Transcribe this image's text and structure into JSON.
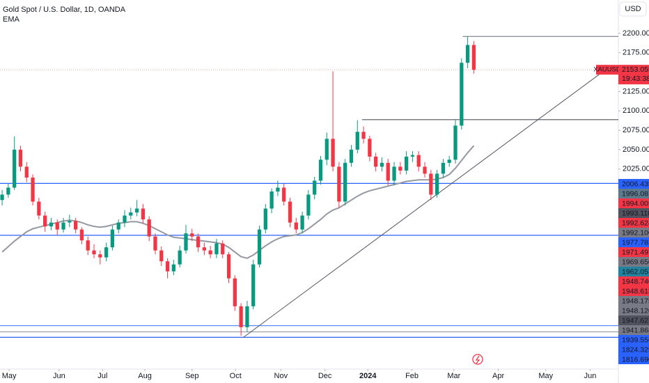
{
  "chart_data": {
    "type": "candlestick",
    "title": "Gold Spot / U.S. Dollar, 1D, OANDA",
    "indicator": "EMA",
    "currency": "USD",
    "up_color": "#089981",
    "down_color": "#f23645",
    "ema_color": "#9598a1",
    "candles": [
      [
        1985,
        1998,
        1978,
        1992
      ],
      [
        1992,
        2006,
        1988,
        2001
      ],
      [
        2001,
        2067,
        1998,
        2050
      ],
      [
        2050,
        2055,
        2022,
        2028
      ],
      [
        2028,
        2034,
        2008,
        2014
      ],
      [
        2014,
        2018,
        1978,
        1983
      ],
      [
        1983,
        1988,
        1960,
        1965
      ],
      [
        1965,
        1970,
        1944,
        1951
      ],
      [
        1951,
        1962,
        1946,
        1956
      ],
      [
        1956,
        1960,
        1940,
        1947
      ],
      [
        1947,
        1962,
        1943,
        1956
      ],
      [
        1956,
        1966,
        1950,
        1958
      ],
      [
        1958,
        1962,
        1942,
        1947
      ],
      [
        1947,
        1950,
        1928,
        1933
      ],
      [
        1933,
        1938,
        1914,
        1920
      ],
      [
        1920,
        1928,
        1910,
        1915
      ],
      [
        1915,
        1920,
        1902,
        1911
      ],
      [
        1911,
        1930,
        1906,
        1924
      ],
      [
        1924,
        1952,
        1920,
        1947
      ],
      [
        1947,
        1960,
        1942,
        1956
      ],
      [
        1956,
        1972,
        1950,
        1965
      ],
      [
        1965,
        1975,
        1960,
        1969
      ],
      [
        1969,
        1985,
        1964,
        1974
      ],
      [
        1974,
        1980,
        1955,
        1960
      ],
      [
        1960,
        1964,
        1932,
        1938
      ],
      [
        1938,
        1942,
        1915,
        1920
      ],
      [
        1920,
        1925,
        1900,
        1906
      ],
      [
        1906,
        1910,
        1884,
        1893
      ],
      [
        1893,
        1908,
        1888,
        1902
      ],
      [
        1902,
        1926,
        1898,
        1920
      ],
      [
        1920,
        1953,
        1916,
        1942
      ],
      [
        1942,
        1948,
        1932,
        1938
      ],
      [
        1938,
        1942,
        1918,
        1924
      ],
      [
        1924,
        1930,
        1914,
        1920
      ],
      [
        1920,
        1926,
        1910,
        1915
      ],
      [
        1915,
        1935,
        1910,
        1929
      ],
      [
        1929,
        1933,
        1910,
        1915
      ],
      [
        1915,
        1918,
        1878,
        1884
      ],
      [
        1884,
        1888,
        1842,
        1848
      ],
      [
        1848,
        1852,
        1810,
        1821
      ],
      [
        1821,
        1855,
        1815,
        1848
      ],
      [
        1848,
        1908,
        1844,
        1902
      ],
      [
        1902,
        1952,
        1898,
        1947
      ],
      [
        1947,
        1980,
        1942,
        1974
      ],
      [
        1974,
        2000,
        1968,
        1996
      ],
      [
        1996,
        2010,
        1990,
        2001
      ],
      [
        2001,
        2006,
        1978,
        1983
      ],
      [
        1983,
        1988,
        1950,
        1956
      ],
      [
        1956,
        1962,
        1942,
        1947
      ],
      [
        1947,
        1970,
        1942,
        1965
      ],
      [
        1965,
        1998,
        1960,
        1992
      ],
      [
        1992,
        2015,
        1986,
        2010
      ],
      [
        2010,
        2042,
        2005,
        2037
      ],
      [
        2037,
        2072,
        2030,
        2064
      ],
      [
        2064,
        2151,
        2022,
        2028
      ],
      [
        2028,
        2034,
        1975,
        1983
      ],
      [
        1983,
        2038,
        1978,
        2033
      ],
      [
        2033,
        2056,
        2028,
        2050
      ],
      [
        2050,
        2088,
        2045,
        2073
      ],
      [
        2073,
        2080,
        2058,
        2064
      ],
      [
        2064,
        2068,
        2035,
        2041
      ],
      [
        2041,
        2046,
        2022,
        2028
      ],
      [
        2028,
        2040,
        2022,
        2033
      ],
      [
        2033,
        2038,
        2004,
        2010
      ],
      [
        2010,
        2034,
        2004,
        2028
      ],
      [
        2028,
        2034,
        2018,
        2023
      ],
      [
        2023,
        2048,
        2018,
        2041
      ],
      [
        2041,
        2048,
        2034,
        2043
      ],
      [
        2043,
        2048,
        2022,
        2028
      ],
      [
        2028,
        2034,
        2014,
        2019
      ],
      [
        2019,
        2024,
        1985,
        1992
      ],
      [
        1992,
        2024,
        1988,
        2019
      ],
      [
        2019,
        2038,
        2014,
        2033
      ],
      [
        2033,
        2042,
        2028,
        2037
      ],
      [
        2037,
        2088,
        2032,
        2081
      ],
      [
        2081,
        2168,
        2076,
        2162
      ],
      [
        2162,
        2196,
        2155,
        2185
      ],
      [
        2185,
        2190,
        2148,
        2153
      ]
    ],
    "ema": [
      1918,
      1925,
      1932,
      1938,
      1944,
      1948,
      1950,
      1952,
      1954,
      1956,
      1958,
      1959,
      1958,
      1956,
      1953,
      1951,
      1950,
      1951,
      1953,
      1955,
      1956,
      1957,
      1957,
      1955,
      1952,
      1948,
      1944,
      1940,
      1937,
      1936,
      1935,
      1934,
      1933,
      1932,
      1931,
      1930,
      1928,
      1924,
      1918,
      1912,
      1910,
      1914,
      1920,
      1926,
      1931,
      1935,
      1938,
      1939,
      1940,
      1943,
      1948,
      1954,
      1960,
      1967,
      1972,
      1975,
      1980,
      1985,
      1990,
      1994,
      1997,
      1999,
      2001,
      2003,
      2005,
      2007,
      2009,
      2010,
      2011,
      2011,
      2011,
      2012,
      2014,
      2018,
      2026,
      2036,
      2046,
      2055
    ],
    "xlim": [
      -0.35,
      100.6
    ],
    "xticks": [
      {
        "value": 1.14,
        "label": "May"
      },
      {
        "value": 9.3,
        "label": "Jun"
      },
      {
        "value": 16.4,
        "label": "Jul"
      },
      {
        "value": 23.3,
        "label": "Aug"
      },
      {
        "value": 31,
        "label": "Sep"
      },
      {
        "value": 38.1,
        "label": "Oct"
      },
      {
        "value": 45.5,
        "label": "Nov"
      },
      {
        "value": 52.7,
        "label": "Dec"
      },
      {
        "value": 59.7,
        "label": "2024"
      },
      {
        "value": 66.9,
        "label": "Feb"
      },
      {
        "value": 73.75,
        "label": "Mar"
      },
      {
        "value": 81,
        "label": "Apr"
      },
      {
        "value": 88.75,
        "label": "May"
      },
      {
        "value": 96,
        "label": "Jun"
      }
    ],
    "ylim": [
      1767,
      2243
    ],
    "yticks": [
      {
        "value": 2200,
        "label": "2200.000"
      },
      {
        "value": 2175,
        "label": "2175.000"
      },
      {
        "value": 2150,
        "label": "2150.000"
      },
      {
        "value": 2125,
        "label": "2125.000"
      },
      {
        "value": 2100,
        "label": "2100.000"
      },
      {
        "value": 2075,
        "label": "2075.000"
      },
      {
        "value": 2050,
        "label": "2050.000"
      },
      {
        "value": 2025,
        "label": "2025.000"
      }
    ],
    "levels": [
      {
        "value": 2196,
        "start": 75.2,
        "color": "#787b86"
      },
      {
        "value": 2088.7,
        "start": 58.75,
        "color": "#50535e"
      },
      {
        "value": 2006.435,
        "color": "#2962ff"
      },
      {
        "value": 1939.556,
        "color": "#2962ff"
      },
      {
        "value": 1823,
        "color": "#5b8cff"
      },
      {
        "value": 1815,
        "color": "#9598a1"
      },
      {
        "value": 1808,
        "color": "#2962ff"
      }
    ],
    "trendline": {
      "x": [
        39.4,
        98.5
      ],
      "y": [
        1808,
        2153
      ]
    },
    "last_price": {
      "value": 2153.055,
      "symbol": "XAUUSD",
      "countdown": "19:43:38",
      "color": "#f23645"
    },
    "price_labels": [
      {
        "label": "2006.435",
        "color": "#2962ff"
      },
      {
        "label": "1996.087",
        "color": "#5d7a8c"
      },
      {
        "label": "1994.005",
        "color": "#f23645"
      },
      {
        "label": "1993.110",
        "color": "#50535e"
      },
      {
        "label": "1992.624",
        "color": "#f23645"
      },
      {
        "label": "1992.100",
        "color": "#787b86"
      },
      {
        "label": "1977.783",
        "color": "#2962ff"
      },
      {
        "label": "1971.497",
        "color": "#f23645"
      },
      {
        "label": "1969.650",
        "color": "#787b86"
      },
      {
        "label": "1962.053",
        "color": "#22839e"
      },
      {
        "label": "1948.740",
        "color": "#f23645"
      },
      {
        "label": "1948.613",
        "color": "#f23645"
      },
      {
        "label": "1948.175",
        "color": "#787b86"
      },
      {
        "label": "1948.120",
        "color": "#787b86"
      },
      {
        "label": "1947.627",
        "color": "#50535e"
      },
      {
        "label": "1941.868",
        "color": "#787b86"
      },
      {
        "label": "1939.556",
        "color": "#2962ff"
      },
      {
        "label": "1824.325",
        "color": "#2962ff"
      },
      {
        "label": "1816.690",
        "color": "#2962ff"
      }
    ]
  }
}
